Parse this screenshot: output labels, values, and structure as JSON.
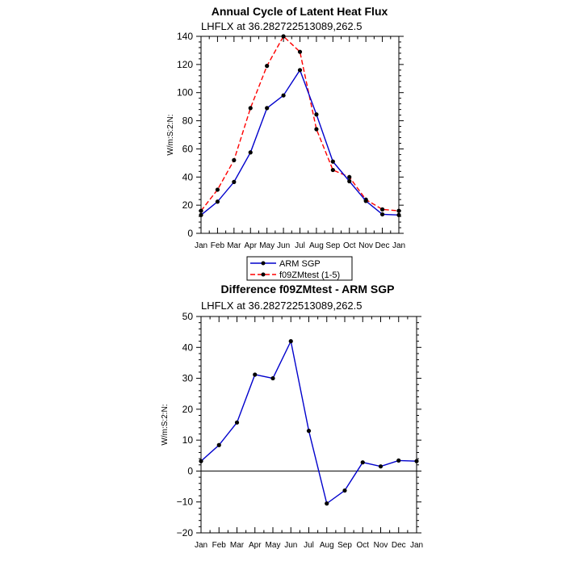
{
  "chart_data": [
    {
      "type": "line",
      "title": "Annual Cycle of Latent Heat Flux",
      "subtitle": "LHFLX at 36.282722513089,262.5",
      "xlabel": "",
      "ylabel": "W/m:S:2:N:",
      "categories": [
        "Jan",
        "Feb",
        "Mar",
        "Apr",
        "May",
        "Jun",
        "Jul",
        "Aug",
        "Sep",
        "Oct",
        "Nov",
        "Dec",
        "Jan"
      ],
      "ylim": [
        0,
        140
      ],
      "yticks": [
        0,
        20,
        40,
        60,
        80,
        100,
        120,
        140
      ],
      "series": [
        {
          "name": "ARM SGP",
          "color": "#0000cc",
          "dash": "solid",
          "marker": "dot",
          "values": [
            13,
            22.5,
            36.5,
            57.5,
            89,
            98,
            116,
            84.5,
            51,
            37,
            23,
            13.5,
            13
          ]
        },
        {
          "name": "f09ZMtest (1-5)",
          "color": "#ff0000",
          "dash": "dashed",
          "marker": "dot",
          "values": [
            16,
            31,
            52,
            89,
            119,
            140,
            129,
            74,
            45,
            40,
            24,
            17,
            16
          ]
        }
      ],
      "legend": {
        "placement": "bottom-center",
        "entries": [
          "ARM SGP",
          "f09ZMtest (1-5)"
        ]
      },
      "grid": false
    },
    {
      "type": "line",
      "title": "Difference f09ZMtest - ARM SGP",
      "subtitle": "LHFLX at 36.282722513089,262.5",
      "xlabel": "",
      "ylabel": "W/m:S:2:N:",
      "categories": [
        "Jan",
        "Feb",
        "Mar",
        "Apr",
        "May",
        "Jun",
        "Jul",
        "Aug",
        "Sep",
        "Oct",
        "Nov",
        "Dec",
        "Jan"
      ],
      "ylim": [
        -20,
        50
      ],
      "yticks": [
        -20,
        -10,
        0,
        10,
        20,
        30,
        40,
        50
      ],
      "series": [
        {
          "color": "#0000cc",
          "dash": "solid",
          "marker": "dot",
          "values": [
            3.2,
            8.4,
            15.7,
            31.2,
            30,
            42,
            13,
            -10.5,
            -6.3,
            2.8,
            1.5,
            3.4,
            3.2
          ]
        }
      ],
      "grid": false
    }
  ]
}
